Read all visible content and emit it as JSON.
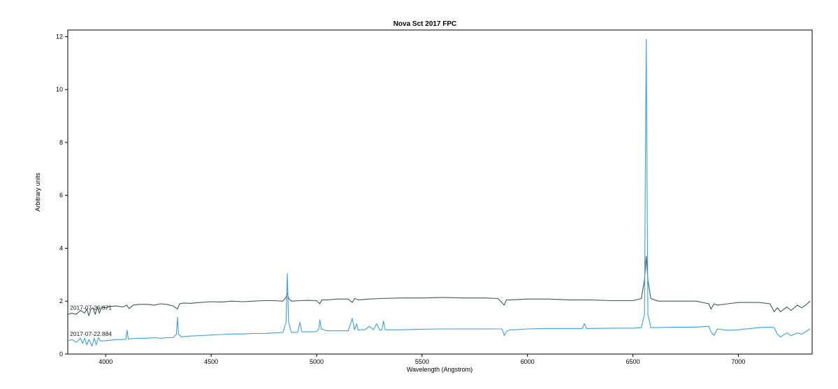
{
  "chart_data": {
    "type": "line",
    "title": "Nova Sct 2017   FPC",
    "xlabel": "Wavelength (Angstrom)",
    "ylabel": "Arbitrary units",
    "xlim": [
      3820,
      7350
    ],
    "ylim": [
      0,
      12.25
    ],
    "xticks": [
      4000,
      4500,
      5000,
      5500,
      6000,
      6500,
      7000
    ],
    "yticks": [
      0,
      2,
      4,
      6,
      8,
      10,
      12
    ],
    "grid": false,
    "legend": "none",
    "series": [
      {
        "name": "2017-07-26.871",
        "color": "#3d5a5a",
        "x": [
          3820,
          3840,
          3860,
          3880,
          3900,
          3910,
          3920,
          3930,
          3940,
          3950,
          3960,
          3970,
          3980,
          4000,
          4020,
          4050,
          4080,
          4100,
          4110,
          4130,
          4160,
          4200,
          4230,
          4260,
          4290,
          4320,
          4340,
          4350,
          4370,
          4400,
          4450,
          4500,
          4550,
          4600,
          4650,
          4700,
          4750,
          4800,
          4840,
          4855,
          4861,
          4867,
          4880,
          4920,
          4960,
          5000,
          5015,
          5025,
          5050,
          5100,
          5150,
          5169,
          5180,
          5200,
          5250,
          5300,
          5400,
          5500,
          5600,
          5700,
          5800,
          5860,
          5890,
          5900,
          5920,
          6000,
          6100,
          6200,
          6300,
          6400,
          6500,
          6540,
          6555,
          6563,
          6571,
          6585,
          6620,
          6700,
          6800,
          6860,
          6870,
          6885,
          6900,
          6950,
          7000,
          7100,
          7150,
          7170,
          7185,
          7200,
          7230,
          7250,
          7280,
          7300,
          7320,
          7340
        ],
        "y": [
          1.5,
          1.55,
          1.5,
          1.65,
          1.55,
          1.7,
          1.45,
          1.7,
          1.75,
          1.5,
          1.78,
          1.55,
          1.78,
          1.75,
          1.8,
          1.82,
          1.78,
          1.85,
          1.72,
          1.85,
          1.88,
          1.88,
          1.85,
          1.9,
          1.88,
          1.82,
          1.7,
          1.9,
          1.93,
          1.92,
          1.95,
          1.98,
          1.97,
          2.0,
          1.98,
          2.0,
          2.02,
          2.02,
          2.0,
          2.15,
          2.3,
          2.1,
          2.0,
          2.02,
          2.03,
          2.02,
          1.9,
          2.05,
          2.05,
          2.08,
          2.08,
          1.95,
          2.1,
          2.05,
          2.08,
          2.1,
          2.12,
          2.12,
          2.14,
          2.12,
          2.12,
          2.1,
          1.85,
          2.05,
          2.05,
          2.08,
          2.08,
          2.05,
          2.05,
          2.02,
          2.02,
          2.1,
          2.8,
          3.7,
          2.8,
          2.1,
          2.0,
          2.0,
          2.0,
          1.9,
          1.7,
          1.9,
          1.85,
          1.9,
          1.95,
          1.95,
          1.9,
          1.6,
          1.75,
          1.6,
          1.78,
          1.65,
          1.85,
          1.75,
          1.85,
          2.0
        ]
      },
      {
        "name": "2017-07-22.884",
        "color": "#39a0e8",
        "x": [
          3820,
          3840,
          3860,
          3880,
          3890,
          3900,
          3910,
          3920,
          3935,
          3945,
          3955,
          3965,
          3975,
          3990,
          4020,
          4050,
          4080,
          4095,
          4101,
          4107,
          4120,
          4160,
          4200,
          4230,
          4260,
          4290,
          4320,
          4335,
          4340,
          4345,
          4360,
          4400,
          4450,
          4500,
          4550,
          4600,
          4650,
          4700,
          4750,
          4800,
          4840,
          4855,
          4861,
          4867,
          4880,
          4910,
          4921,
          4930,
          4960,
          5000,
          5010,
          5016,
          5022,
          5050,
          5100,
          5150,
          5169,
          5180,
          5190,
          5197,
          5205,
          5230,
          5250,
          5270,
          5284,
          5300,
          5310,
          5317,
          5325,
          5360,
          5400,
          5500,
          5600,
          5700,
          5800,
          5860,
          5880,
          5890,
          5900,
          5915,
          5940,
          6000,
          6100,
          6200,
          6260,
          6270,
          6280,
          6300,
          6400,
          6500,
          6540,
          6555,
          6563,
          6571,
          6585,
          6620,
          6700,
          6800,
          6860,
          6870,
          6885,
          6900,
          6950,
          7000,
          7100,
          7150,
          7170,
          7185,
          7200,
          7230,
          7250,
          7280,
          7300,
          7320,
          7340
        ],
        "y": [
          0.5,
          0.55,
          0.45,
          0.6,
          0.4,
          0.6,
          0.35,
          0.55,
          0.3,
          0.6,
          0.35,
          0.62,
          0.5,
          0.5,
          0.52,
          0.55,
          0.55,
          0.56,
          0.9,
          0.56,
          0.58,
          0.6,
          0.6,
          0.62,
          0.6,
          0.62,
          0.62,
          0.75,
          1.4,
          0.75,
          0.65,
          0.68,
          0.7,
          0.72,
          0.74,
          0.76,
          0.76,
          0.78,
          0.78,
          0.8,
          0.82,
          1.2,
          3.05,
          1.2,
          0.82,
          0.82,
          1.2,
          0.84,
          0.84,
          0.85,
          0.95,
          1.3,
          0.95,
          0.88,
          0.88,
          0.88,
          1.35,
          0.92,
          1.15,
          0.9,
          0.92,
          0.92,
          1.05,
          0.92,
          1.15,
          0.9,
          0.92,
          1.25,
          0.92,
          0.92,
          0.92,
          0.94,
          0.95,
          0.95,
          0.95,
          0.95,
          0.95,
          0.7,
          0.85,
          0.92,
          0.92,
          0.95,
          0.97,
          0.97,
          0.97,
          1.15,
          0.97,
          0.97,
          0.98,
          0.98,
          1.0,
          1.5,
          11.9,
          1.5,
          1.0,
          1.0,
          1.02,
          1.02,
          1.05,
          0.85,
          0.7,
          0.95,
          0.9,
          0.92,
          1.0,
          1.02,
          1.0,
          0.75,
          0.65,
          0.8,
          0.7,
          0.8,
          0.75,
          0.85,
          0.95
        ]
      }
    ]
  }
}
